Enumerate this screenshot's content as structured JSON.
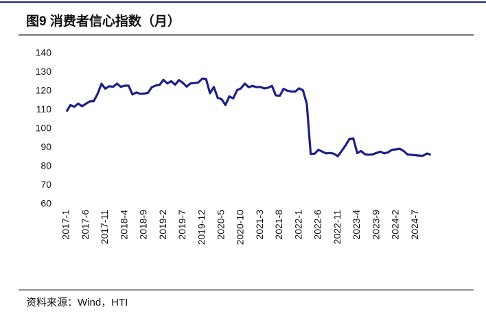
{
  "chart_data": {
    "type": "line",
    "title": "图9  消费者信心指数（月）",
    "source": "资料来源：Wind，HTI",
    "categories": [
      "2017-1",
      null,
      null,
      null,
      null,
      "2017-6",
      null,
      null,
      null,
      null,
      "2017-11",
      null,
      null,
      null,
      null,
      "2018-4",
      null,
      null,
      null,
      null,
      "2018-9",
      null,
      null,
      null,
      null,
      "2019-2",
      null,
      null,
      null,
      null,
      "2019-7",
      null,
      null,
      null,
      null,
      "2019-12",
      null,
      null,
      null,
      null,
      "2020-5",
      null,
      null,
      null,
      null,
      "2020-10",
      null,
      null,
      null,
      null,
      "2021-3",
      null,
      null,
      null,
      null,
      "2021-8",
      null,
      null,
      null,
      null,
      "2022-1",
      null,
      null,
      null,
      null,
      "2022-6",
      null,
      null,
      null,
      null,
      "2022-11",
      null,
      null,
      null,
      null,
      "2023-4",
      null,
      null,
      null,
      null,
      "2023-9",
      null,
      null,
      null,
      null,
      "2024-2",
      null,
      null,
      null,
      null,
      "2024-7",
      null,
      null,
      null,
      null
    ],
    "values": [
      109.2,
      112.6,
      111.7,
      113.4,
      112.0,
      113.3,
      114.6,
      114.7,
      118.6,
      123.9,
      121.3,
      122.6,
      122.3,
      124.0,
      122.3,
      122.9,
      122.9,
      118.2,
      119.3,
      118.6,
      118.7,
      119.1,
      122.1,
      123.0,
      123.3,
      126.0,
      124.1,
      125.3,
      123.4,
      125.9,
      124.4,
      122.4,
      124.1,
      124.3,
      124.6,
      126.6,
      126.4,
      118.9,
      122.2,
      116.4,
      115.8,
      112.6,
      117.2,
      116.1,
      120.5,
      121.5,
      124.0,
      122.1,
      122.8,
      122.1,
      122.2,
      121.5,
      121.8,
      122.8,
      117.8,
      117.5,
      121.2,
      120.2,
      119.8,
      119.8,
      121.5,
      120.5,
      113.2,
      86.7,
      86.8,
      88.9,
      87.9,
      87.0,
      87.2,
      86.8,
      85.5,
      88.3,
      91.2,
      94.7,
      94.9,
      87.1,
      88.2,
      86.5,
      86.3,
      86.5,
      87.2,
      87.9,
      87.0,
      87.6,
      88.9,
      89.1,
      89.4,
      88.2,
      86.4,
      86.2,
      86.0,
      85.8,
      85.7,
      86.9,
      86.2
    ],
    "color": "#1c1f87",
    "ylim": [
      60,
      140
    ],
    "yticks": [
      60,
      70,
      80,
      90,
      100,
      110,
      120,
      130,
      140
    ]
  }
}
